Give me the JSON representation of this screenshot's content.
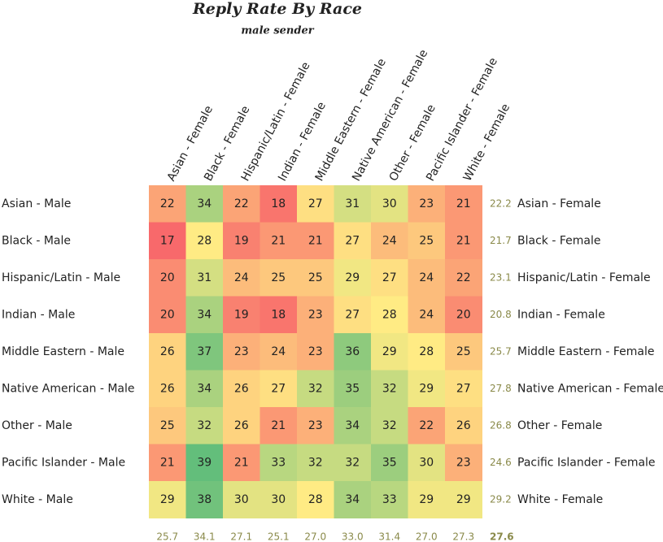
{
  "chart_data": {
    "type": "heatmap",
    "title": "Reply Rate By Race",
    "subtitle": "male sender",
    "x_categories": [
      "Asian - Female",
      "Black - Female",
      "Hispanic/Latin - Female",
      "Indian - Female",
      "Middle Eastern - Female",
      "Native American - Female",
      "Other - Female",
      "Pacific Islander - Female",
      "White - Female"
    ],
    "y_categories": [
      "Asian - Male",
      "Black - Male",
      "Hispanic/Latin - Male",
      "Indian - Male",
      "Middle Eastern - Male",
      "Native American - Male",
      "Other - Male",
      "Pacific Islander - Male",
      "White - Male"
    ],
    "values": [
      [
        22,
        34,
        22,
        18,
        27,
        31,
        30,
        23,
        21
      ],
      [
        17,
        28,
        19,
        21,
        21,
        27,
        24,
        25,
        21
      ],
      [
        20,
        31,
        24,
        25,
        25,
        29,
        27,
        24,
        22
      ],
      [
        20,
        34,
        19,
        18,
        23,
        27,
        28,
        24,
        20
      ],
      [
        26,
        37,
        23,
        24,
        23,
        36,
        29,
        28,
        25
      ],
      [
        26,
        34,
        26,
        27,
        32,
        35,
        32,
        29,
        27
      ],
      [
        25,
        32,
        26,
        21,
        23,
        34,
        32,
        22,
        26
      ],
      [
        21,
        39,
        21,
        33,
        32,
        32,
        35,
        30,
        23
      ],
      [
        29,
        38,
        30,
        30,
        28,
        34,
        33,
        29,
        29
      ]
    ],
    "row_means": [
      22.2,
      21.7,
      23.1,
      20.8,
      25.7,
      27.8,
      26.8,
      24.6,
      29.2
    ],
    "column_means": [
      25.7,
      34.1,
      27.1,
      25.1,
      27.0,
      33.0,
      31.4,
      27.0,
      27.3
    ],
    "column_mean_labels": [
      "25.7",
      "34.1",
      "27.1",
      "25.1",
      "27.0",
      "33.0",
      "31.4",
      "27.0",
      "27.3"
    ],
    "overall_mean": 27.6,
    "colormap": [
      "#f8696b",
      "#ffeb84",
      "#63be7b"
    ]
  }
}
